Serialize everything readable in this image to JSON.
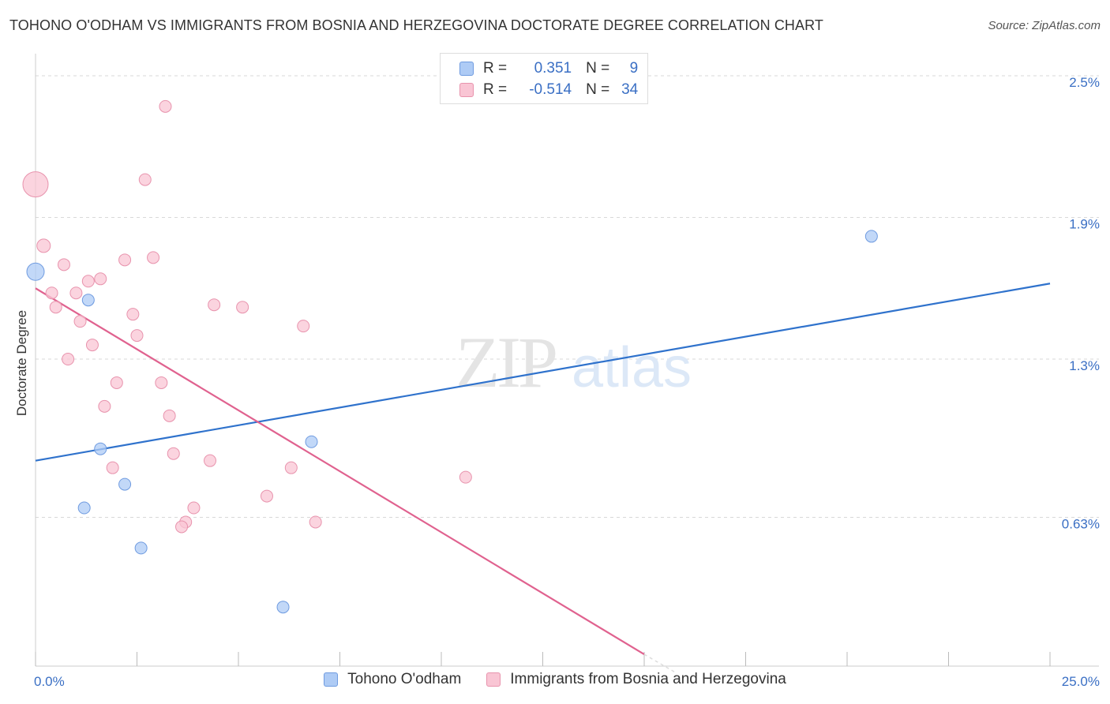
{
  "title": "TOHONO O'ODHAM VS IMMIGRANTS FROM BOSNIA AND HERZEGOVINA DOCTORATE DEGREE CORRELATION CHART",
  "source": "Source: ZipAtlas.com",
  "watermark": {
    "zip": "ZIP",
    "atlas": "atlas"
  },
  "legend": {
    "rows": [
      {
        "r_label": "R =",
        "r_value": "0.351",
        "n_label": "N =",
        "n_value": "9",
        "color": "#aecbf5",
        "border": "#6f9be0"
      },
      {
        "r_label": "R =",
        "r_value": "-0.514",
        "n_label": "N =",
        "n_value": "34",
        "color": "#f9c5d4",
        "border": "#e893ad"
      }
    ]
  },
  "chart_data": {
    "type": "scatter",
    "title": "TOHONO O'ODHAM VS IMMIGRANTS FROM BOSNIA AND HERZEGOVINA DOCTORATE DEGREE CORRELATION CHART",
    "xlabel": "",
    "ylabel": "Doctorate Degree",
    "xlim": [
      0,
      25
    ],
    "ylim": [
      0,
      2.56
    ],
    "x_tick_labels": [
      {
        "value": 0,
        "label": "0.0%"
      },
      {
        "value": 25,
        "label": "25.0%"
      }
    ],
    "y_tick_labels": [
      {
        "value": 0.63,
        "label": "0.63%"
      },
      {
        "value": 1.3,
        "label": "1.3%"
      },
      {
        "value": 1.9,
        "label": "1.9%"
      },
      {
        "value": 2.5,
        "label": "2.5%"
      }
    ],
    "series": [
      {
        "name": "Tohono O'odham",
        "color": "#aecbf5",
        "stroke": "#6f9be0",
        "line_color": "#2f72cc",
        "trend": {
          "x": [
            0,
            25
          ],
          "y": [
            0.87,
            1.62
          ]
        },
        "points": [
          {
            "x": 0.0,
            "y": 1.67,
            "size": 22
          },
          {
            "x": 1.3,
            "y": 1.55,
            "size": 15
          },
          {
            "x": 1.6,
            "y": 0.92,
            "size": 15
          },
          {
            "x": 2.2,
            "y": 0.77,
            "size": 15
          },
          {
            "x": 1.2,
            "y": 0.67,
            "size": 15
          },
          {
            "x": 2.6,
            "y": 0.5,
            "size": 15
          },
          {
            "x": 6.1,
            "y": 0.25,
            "size": 15
          },
          {
            "x": 6.8,
            "y": 0.95,
            "size": 15
          },
          {
            "x": 20.6,
            "y": 1.82,
            "size": 15
          }
        ]
      },
      {
        "name": "Immigrants from Bosnia and Herzegovina",
        "color": "#f9c5d4",
        "stroke": "#e893ad",
        "line_color": "#e0628f",
        "trend": {
          "x": [
            0,
            15.0
          ],
          "y": [
            1.6,
            0.05
          ]
        },
        "trend_dashed_extension": {
          "x": [
            15.0,
            15.8
          ],
          "y": [
            0.05,
            -0.03
          ]
        },
        "points": [
          {
            "x": 0.0,
            "y": 2.04,
            "size": 32
          },
          {
            "x": 3.2,
            "y": 2.37,
            "size": 15
          },
          {
            "x": 2.7,
            "y": 2.06,
            "size": 15
          },
          {
            "x": 0.2,
            "y": 1.78,
            "size": 17
          },
          {
            "x": 0.7,
            "y": 1.7,
            "size": 15
          },
          {
            "x": 2.2,
            "y": 1.72,
            "size": 15
          },
          {
            "x": 2.9,
            "y": 1.73,
            "size": 15
          },
          {
            "x": 1.3,
            "y": 1.63,
            "size": 15
          },
          {
            "x": 1.6,
            "y": 1.64,
            "size": 15
          },
          {
            "x": 0.4,
            "y": 1.58,
            "size": 15
          },
          {
            "x": 1.0,
            "y": 1.58,
            "size": 15
          },
          {
            "x": 0.5,
            "y": 1.52,
            "size": 15
          },
          {
            "x": 2.4,
            "y": 1.49,
            "size": 15
          },
          {
            "x": 4.4,
            "y": 1.53,
            "size": 15
          },
          {
            "x": 5.1,
            "y": 1.52,
            "size": 15
          },
          {
            "x": 1.1,
            "y": 1.46,
            "size": 15
          },
          {
            "x": 2.5,
            "y": 1.4,
            "size": 15
          },
          {
            "x": 6.6,
            "y": 1.44,
            "size": 15
          },
          {
            "x": 1.4,
            "y": 1.36,
            "size": 15
          },
          {
            "x": 0.8,
            "y": 1.3,
            "size": 15
          },
          {
            "x": 2.0,
            "y": 1.2,
            "size": 15
          },
          {
            "x": 3.1,
            "y": 1.2,
            "size": 15
          },
          {
            "x": 1.7,
            "y": 1.1,
            "size": 15
          },
          {
            "x": 3.3,
            "y": 1.06,
            "size": 15
          },
          {
            "x": 3.4,
            "y": 0.9,
            "size": 15
          },
          {
            "x": 4.3,
            "y": 0.87,
            "size": 15
          },
          {
            "x": 1.9,
            "y": 0.84,
            "size": 15
          },
          {
            "x": 6.3,
            "y": 0.84,
            "size": 15
          },
          {
            "x": 10.6,
            "y": 0.8,
            "size": 15
          },
          {
            "x": 5.7,
            "y": 0.72,
            "size": 15
          },
          {
            "x": 3.9,
            "y": 0.67,
            "size": 15
          },
          {
            "x": 3.7,
            "y": 0.61,
            "size": 15
          },
          {
            "x": 3.6,
            "y": 0.59,
            "size": 15
          },
          {
            "x": 6.9,
            "y": 0.61,
            "size": 15
          }
        ]
      }
    ],
    "legend": [
      "Tohono O'odham",
      "Immigrants from Bosnia and Herzegovina"
    ]
  }
}
